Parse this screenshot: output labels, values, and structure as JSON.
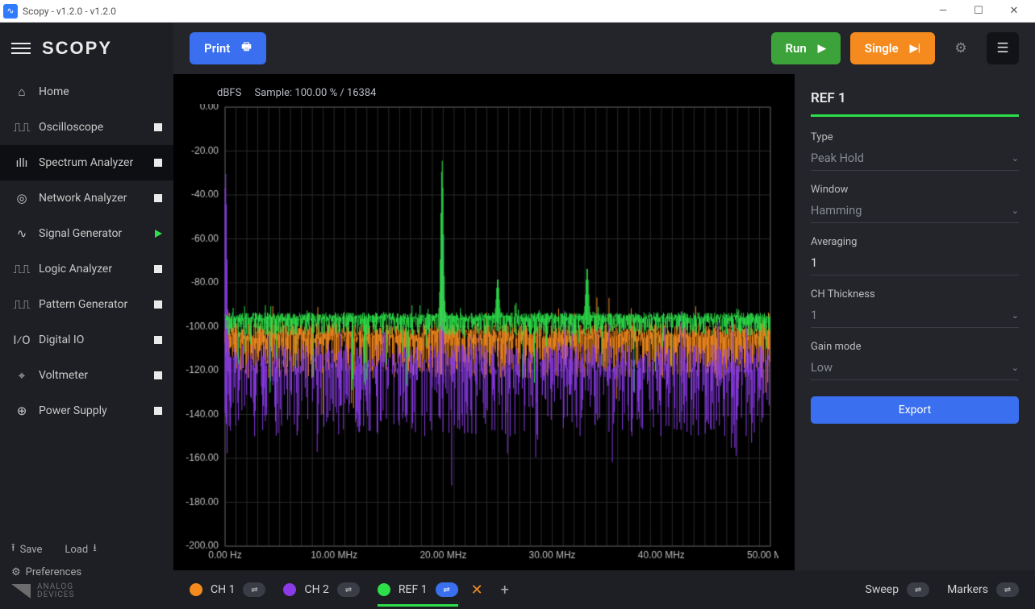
{
  "window": {
    "title": "Scopy - v1.2.0 - v1.2.0"
  },
  "logo": "SCOPY",
  "nav": {
    "home": "Home",
    "items": [
      {
        "label": "Oscilloscope",
        "icon": "⎍⎍",
        "indicator": "stop"
      },
      {
        "label": "Spectrum Analyzer",
        "icon": "ıllı",
        "indicator": "stop",
        "active": true
      },
      {
        "label": "Network Analyzer",
        "icon": "◎",
        "indicator": "stop"
      },
      {
        "label": "Signal Generator",
        "icon": "∿",
        "indicator": "play"
      },
      {
        "label": "Logic Analyzer",
        "icon": "⎍⎍",
        "indicator": "stop"
      },
      {
        "label": "Pattern Generator",
        "icon": "⎍⎍",
        "indicator": "stop"
      },
      {
        "label": "Digital IO",
        "icon": "I⁄O",
        "indicator": "stop"
      },
      {
        "label": "Voltmeter",
        "icon": "⌖",
        "indicator": "stop"
      },
      {
        "label": "Power Supply",
        "icon": "⊕",
        "indicator": "stop"
      }
    ]
  },
  "sidebar_footer": {
    "save": "Save",
    "load": "Load",
    "prefs": "Preferences",
    "ad1": "ANALOG",
    "ad2": "DEVICES"
  },
  "toolbar": {
    "print": "Print",
    "run": "Run",
    "single": "Single"
  },
  "chart": {
    "y_label": "dBFS",
    "sample_text": "Sample: 100.00 % / 16384",
    "x_unit_first": "Hz",
    "x_unit": "MHz",
    "y_min": -200,
    "y_max": 0,
    "y_step": 20,
    "x_min": 0,
    "x_max": 50,
    "x_step": 10,
    "bg": "#000000",
    "grid_color": "#2a2a2a",
    "axis_color": "#bdbdbd",
    "tick_font_px": 12,
    "series": [
      {
        "name": "CH 1",
        "color": "#f58b1f",
        "noise_floor_db": -102,
        "noise_jitter_db": 12,
        "peaks": [
          {
            "x_mhz": 19.9,
            "db": -72
          }
        ],
        "spike_density": 1.0
      },
      {
        "name": "CH 2",
        "color": "#8a3be6",
        "noise_floor_db": -114,
        "noise_jitter_db": 20,
        "peaks": [
          {
            "x_mhz": 19.9,
            "db": -58
          },
          {
            "x_mhz": 0.05,
            "db": -30
          }
        ],
        "spike_density": 0.65
      },
      {
        "name": "REF 1",
        "color": "#2de04a",
        "noise_floor_db": -95,
        "noise_jitter_db": 5,
        "peaks": [
          {
            "x_mhz": 19.9,
            "db": -24
          },
          {
            "x_mhz": 25.0,
            "db": -78
          },
          {
            "x_mhz": 33.2,
            "db": -73
          }
        ],
        "spike_density": 1.0
      }
    ]
  },
  "panel": {
    "title": "REF 1",
    "fields": [
      {
        "label": "Type",
        "value": "Peak Hold",
        "dropdown": true
      },
      {
        "label": "Window",
        "value": "Hamming",
        "dropdown": true
      },
      {
        "label": "Averaging",
        "value": "1",
        "bright": true
      },
      {
        "label": "CH Thickness",
        "value": "1",
        "dropdown": true
      },
      {
        "label": "Gain mode",
        "value": "Low",
        "dropdown": true
      }
    ],
    "export": "Export"
  },
  "bottom": {
    "channels": [
      {
        "label": "CH 1",
        "color": "#f58b1f"
      },
      {
        "label": "CH 2",
        "color": "#8a3be6"
      },
      {
        "label": "REF 1",
        "color": "#2de04a",
        "active": true,
        "closable": true
      }
    ],
    "sweep": "Sweep",
    "markers": "Markers"
  }
}
